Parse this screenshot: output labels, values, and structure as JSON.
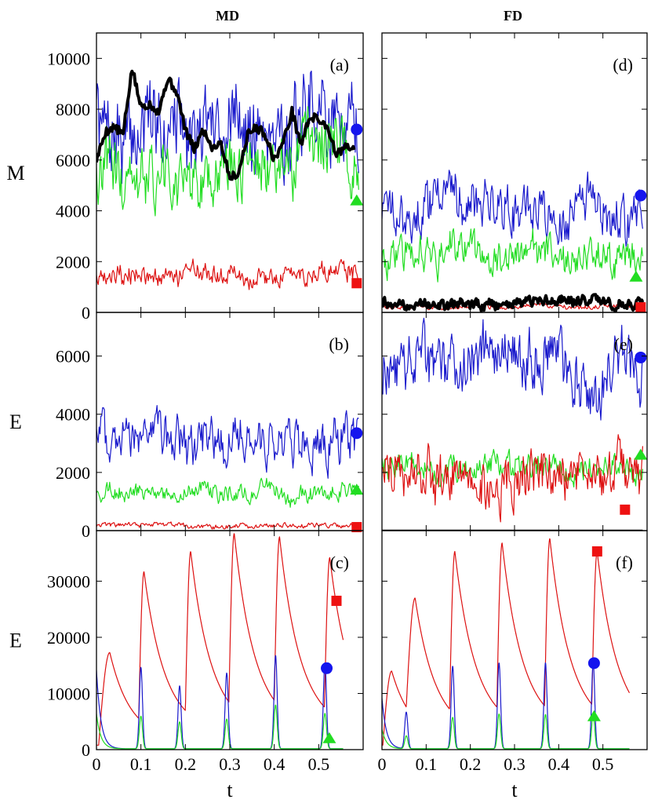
{
  "columns": [
    "MD",
    "FD"
  ],
  "colors": {
    "blue": "#1a1acc",
    "green": "#22dd22",
    "red": "#dd1111",
    "black": "#000000",
    "marker_blue": "#1515ee",
    "marker_green": "#22dd22",
    "marker_red": "#ee1111"
  },
  "chart_data": [
    {
      "type": "line",
      "panel": "(a)",
      "column": "MD",
      "ylabel": "M",
      "xlabel": "",
      "xlim": [
        0,
        0.6
      ],
      "ylim": [
        0,
        11000
      ],
      "yticks": [
        0,
        2000,
        4000,
        6000,
        8000,
        10000
      ],
      "xticks": [
        0,
        0.1,
        0.2,
        0.3,
        0.4,
        0.5
      ],
      "series": [
        {
          "color": "blue",
          "kind": "noisy",
          "min": 5000,
          "max": 9500,
          "mean": 7200
        },
        {
          "color": "green",
          "kind": "noisy",
          "min": 3800,
          "max": 8100,
          "mean": 5000
        },
        {
          "color": "red",
          "kind": "noisy",
          "min": 900,
          "max": 2100,
          "mean": 1300
        },
        {
          "color": "black",
          "kind": "walk",
          "width": 4,
          "x": [
            0,
            0.02,
            0.04,
            0.06,
            0.08,
            0.1,
            0.12,
            0.14,
            0.16,
            0.18,
            0.2,
            0.22,
            0.24,
            0.26,
            0.28,
            0.3,
            0.32,
            0.34,
            0.36,
            0.38,
            0.4,
            0.42,
            0.44,
            0.46,
            0.48,
            0.5,
            0.52,
            0.54,
            0.56,
            0.58
          ],
          "y": [
            6000,
            7100,
            7300,
            7000,
            9600,
            8100,
            8200,
            7900,
            9200,
            8700,
            7200,
            6400,
            7200,
            6500,
            6700,
            5300,
            5500,
            7000,
            7300,
            7000,
            6000,
            6700,
            7900,
            6600,
            7700,
            7600,
            7300,
            6200,
            6500,
            6400
          ]
        }
      ],
      "markers": [
        {
          "shape": "circle",
          "color": "marker_blue",
          "x": 0.5855,
          "y": 7200
        },
        {
          "shape": "triangle",
          "color": "marker_green",
          "x": 0.5855,
          "y": 4400
        },
        {
          "shape": "square",
          "color": "marker_red",
          "x": 0.5855,
          "y": 1150
        }
      ]
    },
    {
      "type": "line",
      "panel": "(b)",
      "column": "MD",
      "ylabel": "E",
      "xlabel": "",
      "xlim": [
        0,
        0.6
      ],
      "ylim": [
        0,
        7500
      ],
      "yticks": [
        0,
        2000,
        4000,
        6000
      ],
      "xticks": [
        0,
        0.1,
        0.2,
        0.3,
        0.4,
        0.5
      ],
      "series": [
        {
          "color": "blue",
          "kind": "noisy",
          "min": 1800,
          "max": 4300,
          "mean": 2700
        },
        {
          "color": "green",
          "kind": "noisy",
          "min": 800,
          "max": 1800,
          "mean": 1200
        },
        {
          "color": "red",
          "kind": "noisy",
          "min": 50,
          "max": 300,
          "mean": 150
        }
      ],
      "markers": [
        {
          "shape": "circle",
          "color": "marker_blue",
          "x": 0.5855,
          "y": 3350
        },
        {
          "shape": "triangle",
          "color": "marker_green",
          "x": 0.5855,
          "y": 1400
        },
        {
          "shape": "square",
          "color": "marker_red",
          "x": 0.5855,
          "y": 120
        }
      ]
    },
    {
      "type": "line",
      "panel": "(c)",
      "column": "MD",
      "ylabel": "E",
      "xlabel": "t",
      "xlim": [
        0,
        0.6
      ],
      "ylim": [
        0,
        39000
      ],
      "yticks": [
        0,
        10000,
        20000,
        30000
      ],
      "xticks": [
        0,
        0.1,
        0.2,
        0.3,
        0.4,
        0.5
      ],
      "xtick_labels": [
        "0",
        "0.1",
        "0.2",
        "0.3",
        "0.4",
        "0.5"
      ],
      "series": [
        {
          "color": "red",
          "kind": "pulses",
          "end": 0.555,
          "pulses": [
            {
              "t": 0.03,
              "peak": 17300,
              "rise": 0.025
            },
            {
              "t": 0.107,
              "peak": 31700
            },
            {
              "t": 0.212,
              "peak": 35300
            },
            {
              "t": 0.31,
              "peak": 38500
            },
            {
              "t": 0.412,
              "peak": 37900
            },
            {
              "t": 0.525,
              "peak": 34200
            }
          ]
        },
        {
          "color": "blue",
          "kind": "spikes",
          "end": 0.555,
          "start": 14000,
          "spikes": [
            {
              "t": 0.1,
              "peak": 14500
            },
            {
              "t": 0.187,
              "peak": 11200
            },
            {
              "t": 0.293,
              "peak": 13500
            },
            {
              "t": 0.403,
              "peak": 16600
            },
            {
              "t": 0.514,
              "peak": 15300
            }
          ]
        },
        {
          "color": "green",
          "kind": "spikes",
          "end": 0.555,
          "start": 6200,
          "spikes": [
            {
              "t": 0.1,
              "peak": 5800
            },
            {
              "t": 0.187,
              "peak": 4800
            },
            {
              "t": 0.293,
              "peak": 5300
            },
            {
              "t": 0.403,
              "peak": 7800
            },
            {
              "t": 0.514,
              "peak": 6300
            }
          ]
        }
      ],
      "markers": [
        {
          "shape": "circle",
          "color": "marker_blue",
          "x": 0.518,
          "y": 14500
        },
        {
          "shape": "triangle",
          "color": "marker_green",
          "x": 0.524,
          "y": 2000
        },
        {
          "shape": "square",
          "color": "marker_red",
          "x": 0.54,
          "y": 26500
        }
      ]
    },
    {
      "type": "line",
      "panel": "(d)",
      "column": "FD",
      "ylabel": "",
      "xlabel": "",
      "xlim": [
        0,
        0.6
      ],
      "ylim": [
        0,
        11000
      ],
      "yticks": [
        0,
        2000,
        4000,
        6000,
        8000,
        10000
      ],
      "xticks": [
        0,
        0.1,
        0.2,
        0.3,
        0.4,
        0.5
      ],
      "series": [
        {
          "color": "blue",
          "kind": "noisy",
          "min": 2600,
          "max": 5600,
          "mean": 3800
        },
        {
          "color": "green",
          "kind": "noisy",
          "min": 1200,
          "max": 3300,
          "mean": 2300
        },
        {
          "color": "red",
          "kind": "noisy",
          "min": 100,
          "max": 400,
          "mean": 220
        },
        {
          "color": "black",
          "kind": "noisy",
          "width": 4,
          "min": 50,
          "max": 700,
          "mean": 300
        }
      ],
      "markers": [
        {
          "shape": "circle",
          "color": "marker_blue",
          "x": 0.5855,
          "y": 4600
        },
        {
          "shape": "triangle",
          "color": "marker_green",
          "x": 0.575,
          "y": 1400
        },
        {
          "shape": "square",
          "color": "marker_red",
          "x": 0.5855,
          "y": 200
        }
      ]
    },
    {
      "type": "line",
      "panel": "(e)",
      "column": "FD",
      "ylabel": "",
      "xlabel": "",
      "xlim": [
        0,
        0.6
      ],
      "ylim": [
        0,
        7500
      ],
      "yticks": [
        0,
        2000,
        4000,
        6000
      ],
      "xticks": [
        0,
        0.1,
        0.2,
        0.3,
        0.4,
        0.5
      ],
      "series": [
        {
          "color": "blue",
          "kind": "noisy",
          "min": 3800,
          "max": 7300,
          "mean": 5300
        },
        {
          "color": "green",
          "kind": "noisy",
          "min": 1500,
          "max": 2800,
          "mean": 2100
        },
        {
          "color": "red",
          "kind": "noisy",
          "min": 300,
          "max": 3300,
          "mean": 1300
        },
        {
          "color": "black",
          "kind": "flat",
          "value": 20
        }
      ],
      "markers": [
        {
          "shape": "circle",
          "color": "marker_blue",
          "x": 0.5855,
          "y": 5950
        },
        {
          "shape": "triangle",
          "color": "marker_green",
          "x": 0.5855,
          "y": 2600
        },
        {
          "shape": "square",
          "color": "marker_red",
          "x": 0.55,
          "y": 720
        }
      ]
    },
    {
      "type": "line",
      "panel": "(f)",
      "column": "FD",
      "ylabel": "",
      "xlabel": "t",
      "xlim": [
        0,
        0.6
      ],
      "ylim": [
        0,
        39000
      ],
      "yticks": [
        0,
        10000,
        20000,
        30000
      ],
      "xticks": [
        0,
        0.1,
        0.2,
        0.3,
        0.4,
        0.5
      ],
      "xtick_labels": [
        "0",
        "0.1",
        "0.2",
        "0.3",
        "0.4",
        "0.5"
      ],
      "series": [
        {
          "color": "red",
          "kind": "pulses",
          "end": 0.56,
          "pulses": [
            {
              "t": 0.022,
              "peak": 14000,
              "rise": 0.02
            },
            {
              "t": 0.075,
              "peak": 27000,
              "rise": 0.02
            },
            {
              "t": 0.165,
              "peak": 35300
            },
            {
              "t": 0.272,
              "peak": 36800
            },
            {
              "t": 0.38,
              "peak": 37600
            },
            {
              "t": 0.487,
              "peak": 35300
            }
          ]
        },
        {
          "color": "blue",
          "kind": "spikes",
          "end": 0.56,
          "start": 9000,
          "spikes": [
            {
              "t": 0.055,
              "peak": 6500
            },
            {
              "t": 0.16,
              "peak": 14700
            },
            {
              "t": 0.265,
              "peak": 15300
            },
            {
              "t": 0.37,
              "peak": 15300
            },
            {
              "t": 0.478,
              "peak": 15400
            }
          ]
        },
        {
          "color": "green",
          "kind": "spikes",
          "end": 0.56,
          "start": 3500,
          "spikes": [
            {
              "t": 0.055,
              "peak": 2300
            },
            {
              "t": 0.16,
              "peak": 5600
            },
            {
              "t": 0.265,
              "peak": 6200
            },
            {
              "t": 0.37,
              "peak": 6100
            },
            {
              "t": 0.478,
              "peak": 6100
            }
          ]
        }
      ],
      "markers": [
        {
          "shape": "circle",
          "color": "marker_blue",
          "x": 0.48,
          "y": 15400
        },
        {
          "shape": "triangle",
          "color": "marker_green",
          "x": 0.48,
          "y": 5900
        },
        {
          "shape": "square",
          "color": "marker_red",
          "x": 0.487,
          "y": 35300
        }
      ]
    }
  ]
}
